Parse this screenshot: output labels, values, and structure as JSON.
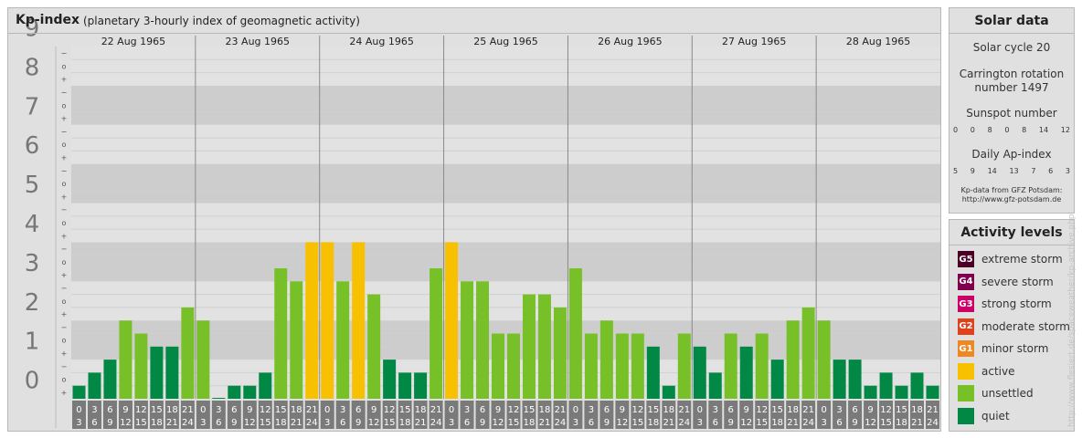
{
  "header": {
    "title": "Kp-index",
    "subtitle": "(planetary 3-hourly index of geomagnetic activity)"
  },
  "chart_data": {
    "type": "bar",
    "title": "Kp-index",
    "subtitle": "(planetary 3-hourly index of geomagnetic activity)",
    "ylim": [
      0,
      9
    ],
    "y_ticks": [
      "0",
      "1",
      "2",
      "3",
      "4",
      "5",
      "6",
      "7",
      "8",
      "9"
    ],
    "minor_tick_labels": [
      "+",
      "o",
      "−"
    ],
    "days": [
      "22 Aug 1965",
      "23 Aug 1965",
      "24 Aug 1965",
      "25 Aug 1965",
      "26 Aug 1965",
      "27 Aug 1965",
      "28 Aug 1965"
    ],
    "interval_starts": [
      "0",
      "3",
      "6",
      "9",
      "12",
      "15",
      "18",
      "21"
    ],
    "interval_ends": [
      "3",
      "6",
      "9",
      "12",
      "15",
      "18",
      "21",
      "24"
    ],
    "values": [
      0.333,
      0.667,
      1.0,
      2.0,
      1.667,
      1.333,
      1.333,
      2.333,
      2.0,
      0.0,
      0.333,
      0.333,
      0.667,
      3.333,
      3.0,
      4.0,
      4.0,
      3.0,
      4.0,
      2.667,
      1.0,
      0.667,
      0.667,
      3.333,
      4.0,
      3.0,
      3.0,
      1.667,
      1.667,
      2.667,
      2.667,
      2.333,
      3.333,
      1.667,
      2.0,
      1.667,
      1.667,
      1.333,
      0.333,
      1.667,
      1.333,
      0.667,
      1.667,
      1.333,
      1.667,
      1.0,
      2.0,
      2.333,
      2.0,
      1.0,
      1.0,
      0.333,
      0.667,
      0.333,
      0.667,
      0.333
    ],
    "grid": true
  },
  "solar": {
    "title": "Solar data",
    "cycle": "Solar cycle 20",
    "carrington_line1": "Carrington rotation",
    "carrington_line2": "number 1497",
    "sunspot_label": "Sunspot number",
    "sunspots": [
      "0",
      "0",
      "8",
      "0",
      "8",
      "14",
      "12"
    ],
    "ap_label": "Daily Ap-index",
    "ap_values": [
      "5",
      "9",
      "14",
      "13",
      "7",
      "6",
      "3"
    ],
    "credit_line1": "Kp-data from GFZ Potsdam:",
    "credit_line2": "http://www.gfz-potsdam.de"
  },
  "activity": {
    "title": "Activity levels",
    "levels": [
      {
        "code": "G5",
        "label": "extreme storm",
        "color": "#4d0026"
      },
      {
        "code": "G4",
        "label": "severe storm",
        "color": "#80004d"
      },
      {
        "code": "G3",
        "label": "strong storm",
        "color": "#cc0066"
      },
      {
        "code": "G2",
        "label": "moderate storm",
        "color": "#e0401a"
      },
      {
        "code": "G1",
        "label": "minor storm",
        "color": "#ee8822"
      },
      {
        "code": "",
        "label": "active",
        "color": "#f7c000"
      },
      {
        "code": "",
        "label": "unsettled",
        "color": "#77c028"
      },
      {
        "code": "",
        "label": "quiet",
        "color": "#008844"
      }
    ]
  },
  "watermark": "http://www.flesiert.de/spaceweather/kp-archive.php"
}
